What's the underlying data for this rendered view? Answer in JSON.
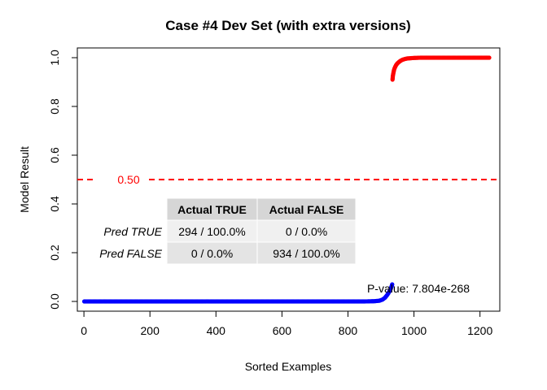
{
  "chart_data": {
    "type": "scatter",
    "title": "Case #4 Dev Set (with extra versions)",
    "xlabel": "Sorted Examples",
    "ylabel": "Model Result",
    "xlim": [
      -20,
      1260
    ],
    "ylim": [
      -0.04,
      1.04
    ],
    "x_ticks": [
      0,
      200,
      400,
      600,
      800,
      1000,
      1200
    ],
    "x_tick_labels": [
      "0",
      "200",
      "400",
      "600",
      "800",
      "1000",
      "1200"
    ],
    "y_ticks": [
      0.0,
      0.2,
      0.4,
      0.6,
      0.8,
      1.0
    ],
    "y_tick_labels": [
      "0.0",
      "0.2",
      "0.4",
      "0.6",
      "0.8",
      "1.0"
    ],
    "grid": false,
    "threshold": {
      "value": 0.5,
      "label": "0.50",
      "color": "#ff0000"
    },
    "series": [
      {
        "color": "#0000ff",
        "x": [
          1,
          100,
          200,
          300,
          400,
          500,
          600,
          700,
          800,
          850,
          880,
          895,
          905,
          912,
          918,
          922,
          926,
          929,
          931,
          933,
          934
        ],
        "y": [
          0.0,
          0.0,
          0.0,
          0.0,
          0.0,
          0.0,
          0.0,
          0.0,
          0.0,
          0.0,
          0.001,
          0.003,
          0.008,
          0.015,
          0.025,
          0.033,
          0.042,
          0.05,
          0.058,
          0.065,
          0.07
        ]
      },
      {
        "color": "#ff0000",
        "x": [
          935,
          936,
          938,
          940,
          943,
          946,
          950,
          955,
          960,
          966,
          973,
          980,
          990,
          1000,
          1020,
          1050,
          1100,
          1150,
          1200,
          1228
        ],
        "y": [
          0.91,
          0.925,
          0.94,
          0.952,
          0.962,
          0.97,
          0.977,
          0.983,
          0.988,
          0.992,
          0.995,
          0.997,
          0.998,
          0.999,
          1.0,
          1.0,
          1.0,
          1.0,
          1.0,
          1.0
        ]
      }
    ],
    "annotations": [
      {
        "text": "P-value: 7.804e-268"
      }
    ],
    "confusion_table": {
      "col_headers": [
        "Actual TRUE",
        "Actual FALSE"
      ],
      "rows": [
        {
          "label": "Pred TRUE",
          "cells": [
            "294 / 100.0%",
            "0 / 0.0%"
          ]
        },
        {
          "label": "Pred FALSE",
          "cells": [
            "0 / 0.0%",
            "934 / 100.0%"
          ]
        }
      ]
    }
  }
}
